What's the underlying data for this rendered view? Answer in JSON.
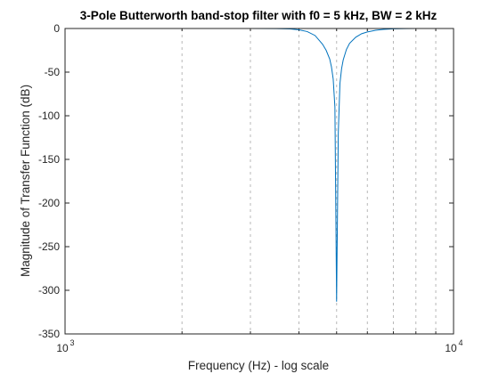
{
  "chart_data": {
    "type": "line",
    "title": "3-Pole Butterworth band-stop filter with f0 = 5 kHz, BW = 2 kHz",
    "xlabel": "Frequency (Hz) - log scale",
    "ylabel": "Magnitude of Transfer Function (dB)",
    "xscale": "log",
    "xlim": [
      1000,
      10000
    ],
    "ylim": [
      -350,
      0
    ],
    "grid": "x-only (log minor and major, dashed)",
    "x_ticks": [
      {
        "base": "10",
        "exp": "3",
        "value": 1000
      },
      {
        "base": "10",
        "exp": "4",
        "value": 10000
      }
    ],
    "y_ticks": [
      0,
      -50,
      -100,
      -150,
      -200,
      -250,
      -300,
      -350
    ],
    "y_tick_labels": [
      "0",
      "-50",
      "-100",
      "-150",
      "-200",
      "-250",
      "-300",
      "-350"
    ],
    "series": [
      {
        "color": "#0072BD",
        "x": [
          1000,
          1500,
          2000,
          2500,
          3000,
          3500,
          3800,
          4000,
          4200,
          4400,
          4600,
          4700,
          4800,
          4850,
          4900,
          4950,
          5000,
          5050,
          5100,
          5150,
          5200,
          5300,
          5400,
          5600,
          5800,
          6000,
          6300,
          6600,
          7000,
          7500,
          8000,
          9000,
          10000
        ],
        "y": [
          0,
          0,
          0,
          0,
          0,
          -0.1,
          -0.5,
          -1.5,
          -3.5,
          -8,
          -18,
          -25,
          -35,
          -44,
          -58,
          -90,
          -313,
          -120,
          -63,
          -46,
          -36,
          -24,
          -17,
          -10,
          -6,
          -4,
          -2,
          -1,
          -0.4,
          -0.1,
          0,
          0,
          0
        ]
      }
    ]
  },
  "colors": {
    "axis": "#262626",
    "grid": "#b8b8b8",
    "line": "#0072BD"
  }
}
